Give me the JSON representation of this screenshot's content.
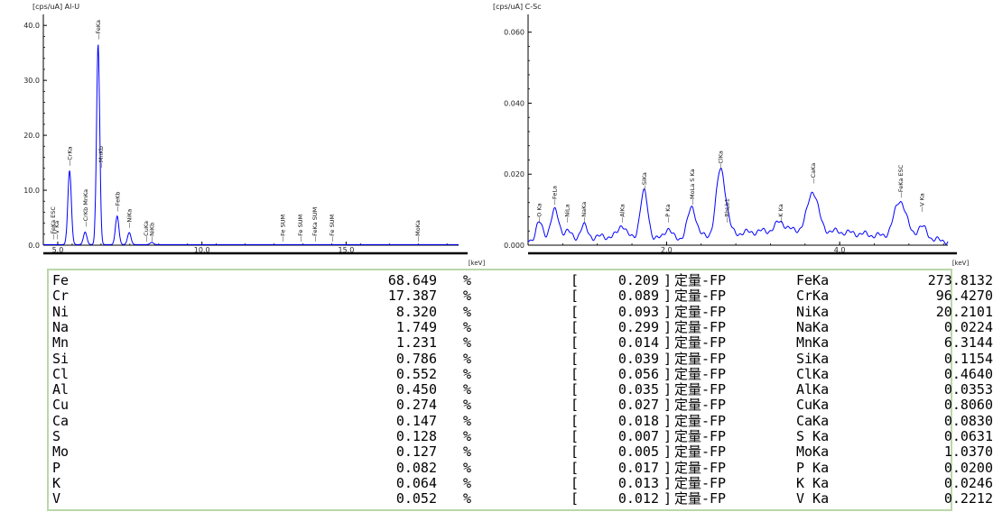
{
  "chart_data": [
    {
      "type": "line",
      "title": "[cps/uA] Al-U",
      "xlabel": "[keV]",
      "ylabel": "[cps/uA]",
      "xlim": [
        4.5,
        18.9
      ],
      "ylim": [
        0,
        42
      ],
      "x_ticks": [
        5.0,
        10.0,
        15.0
      ],
      "x_tick_labels": [
        "5.0",
        "10.0",
        "15.0"
      ],
      "y_ticks": [
        0,
        10,
        20,
        30,
        40
      ],
      "y_tick_labels": [
        "0.0",
        "10.0",
        "20.0",
        "30.0",
        "40.0"
      ],
      "grid": false,
      "line_color": "#0000ff",
      "peaks": [
        {
          "x": 5.41,
          "y": 13.5,
          "w": 0.06
        },
        {
          "x": 5.95,
          "y": 2.3,
          "w": 0.06
        },
        {
          "x": 6.4,
          "y": 36.5,
          "w": 0.055
        },
        {
          "x": 7.06,
          "y": 5.2,
          "w": 0.06
        },
        {
          "x": 7.48,
          "y": 2.2,
          "w": 0.06
        },
        {
          "x": 8.26,
          "y": 0.4,
          "w": 0.06
        }
      ],
      "baseline": 0.1,
      "annotations": [
        {
          "x": 4.83,
          "label": "FeKa ESC",
          "y": 1.0
        },
        {
          "x": 4.95,
          "label": "V Ka",
          "y": 1.0
        },
        {
          "x": 5.41,
          "label": "CrKa",
          "y": 14.4
        },
        {
          "x": 5.95,
          "label": "CrKb MnKa",
          "y": 3.3
        },
        {
          "x": 6.4,
          "label": "FeKa",
          "y": 37.4
        },
        {
          "x": 6.49,
          "label": "MnKb",
          "y": 14.0
        },
        {
          "x": 7.06,
          "label": "FeKb",
          "y": 6.1
        },
        {
          "x": 7.48,
          "label": "NiKa",
          "y": 3.1
        },
        {
          "x": 8.05,
          "label": "CuKa",
          "y": 0.6
        },
        {
          "x": 8.26,
          "label": "NiKb",
          "y": 0.6
        },
        {
          "x": 12.8,
          "label": "Fe SUM",
          "y": 0.6
        },
        {
          "x": 13.4,
          "label": "Fe SUM",
          "y": 0.6
        },
        {
          "x": 13.9,
          "label": "FeKa SUM",
          "y": 0.6
        },
        {
          "x": 14.5,
          "label": "Fe SUM",
          "y": 0.6
        },
        {
          "x": 17.48,
          "label": "MoKa",
          "y": 0.6
        }
      ]
    },
    {
      "type": "line",
      "title": "[cps/uA] C-Sc",
      "xlabel": "[keV]",
      "ylabel": "[cps/uA]",
      "xlim": [
        0.4,
        5.25
      ],
      "ylim": [
        0,
        0.065
      ],
      "x_ticks": [
        2.0,
        4.0
      ],
      "x_tick_labels": [
        "2.0",
        "4.0"
      ],
      "y_ticks": [
        0,
        0.02,
        0.04,
        0.06
      ],
      "y_tick_labels": [
        "0.000",
        "0.020",
        "0.040",
        "0.060"
      ],
      "grid": false,
      "line_color": "#0000ff",
      "peaks": [
        {
          "x": 0.525,
          "y": 0.0055,
          "w": 0.04
        },
        {
          "x": 0.705,
          "y": 0.0085,
          "w": 0.05
        },
        {
          "x": 0.851,
          "y": 0.0025,
          "w": 0.04
        },
        {
          "x": 1.041,
          "y": 0.0035,
          "w": 0.04
        },
        {
          "x": 1.486,
          "y": 0.0035,
          "w": 0.04
        },
        {
          "x": 1.74,
          "y": 0.013,
          "w": 0.045
        },
        {
          "x": 2.013,
          "y": 0.003,
          "w": 0.04
        },
        {
          "x": 2.293,
          "y": 0.0085,
          "w": 0.05
        },
        {
          "x": 2.622,
          "y": 0.018,
          "w": 0.05
        },
        {
          "x": 2.696,
          "y": 0.003,
          "w": 0.04
        },
        {
          "x": 3.314,
          "y": 0.0025,
          "w": 0.05
        },
        {
          "x": 3.69,
          "y": 0.011,
          "w": 0.06
        },
        {
          "x": 4.7,
          "y": 0.0105,
          "w": 0.07
        },
        {
          "x": 4.95,
          "y": 0.0035,
          "w": 0.06
        }
      ],
      "baseline": 0.0008,
      "annotations": [
        {
          "x": 0.525,
          "label": "O Ka",
          "y": 0.0063
        },
        {
          "x": 0.705,
          "label": "FeLa",
          "y": 0.0113
        },
        {
          "x": 0.851,
          "label": "NiLa",
          "y": 0.0063
        },
        {
          "x": 1.041,
          "label": "NaKa",
          "y": 0.0063
        },
        {
          "x": 1.486,
          "label": "AlKa",
          "y": 0.0063
        },
        {
          "x": 1.74,
          "label": "SiKa",
          "y": 0.0153
        },
        {
          "x": 2.013,
          "label": "P Ka",
          "y": 0.0063
        },
        {
          "x": 2.293,
          "label": "MoLa S Ka",
          "y": 0.0113
        },
        {
          "x": 2.622,
          "label": "ClKa",
          "y": 0.0213
        },
        {
          "x": 2.696,
          "label": "RhLb1",
          "y": 0.0063
        },
        {
          "x": 3.314,
          "label": "K Ka",
          "y": 0.0063
        },
        {
          "x": 3.69,
          "label": "CaKa",
          "y": 0.0173
        },
        {
          "x": 4.7,
          "label": "FeKa ESC",
          "y": 0.0133
        },
        {
          "x": 4.95,
          "label": "V Ka",
          "y": 0.0093
        }
      ]
    }
  ],
  "results": [
    {
      "element": "Fe",
      "value": "68.649",
      "unit": "%",
      "error": "0.209",
      "method": "定量-FP",
      "line": "FeKa",
      "intensity": "273.8132"
    },
    {
      "element": "Cr",
      "value": "17.387",
      "unit": "%",
      "error": "0.089",
      "method": "定量-FP",
      "line": "CrKa",
      "intensity": "96.4270"
    },
    {
      "element": "Ni",
      "value": "8.320",
      "unit": "%",
      "error": "0.093",
      "method": "定量-FP",
      "line": "NiKa",
      "intensity": "20.2101"
    },
    {
      "element": "Na",
      "value": "1.749",
      "unit": "%",
      "error": "0.299",
      "method": "定量-FP",
      "line": "NaKa",
      "intensity": "0.0224"
    },
    {
      "element": "Mn",
      "value": "1.231",
      "unit": "%",
      "error": "0.014",
      "method": "定量-FP",
      "line": "MnKa",
      "intensity": "6.3144"
    },
    {
      "element": "Si",
      "value": "0.786",
      "unit": "%",
      "error": "0.039",
      "method": "定量-FP",
      "line": "SiKa",
      "intensity": "0.1154"
    },
    {
      "element": "Cl",
      "value": "0.552",
      "unit": "%",
      "error": "0.056",
      "method": "定量-FP",
      "line": "ClKa",
      "intensity": "0.4640"
    },
    {
      "element": "Al",
      "value": "0.450",
      "unit": "%",
      "error": "0.035",
      "method": "定量-FP",
      "line": "AlKa",
      "intensity": "0.0353"
    },
    {
      "element": "Cu",
      "value": "0.274",
      "unit": "%",
      "error": "0.027",
      "method": "定量-FP",
      "line": "CuKa",
      "intensity": "0.8060"
    },
    {
      "element": "Ca",
      "value": "0.147",
      "unit": "%",
      "error": "0.018",
      "method": "定量-FP",
      "line": "CaKa",
      "intensity": "0.0830"
    },
    {
      "element": "S",
      "value": "0.128",
      "unit": "%",
      "error": "0.007",
      "method": "定量-FP",
      "line": "S Ka",
      "intensity": "0.0631"
    },
    {
      "element": "Mo",
      "value": "0.127",
      "unit": "%",
      "error": "0.005",
      "method": "定量-FP",
      "line": "MoKa",
      "intensity": "1.0370"
    },
    {
      "element": "P",
      "value": "0.082",
      "unit": "%",
      "error": "0.017",
      "method": "定量-FP",
      "line": "P Ka",
      "intensity": "0.0200"
    },
    {
      "element": "K",
      "value": "0.064",
      "unit": "%",
      "error": "0.013",
      "method": "定量-FP",
      "line": "K Ka",
      "intensity": "0.0246"
    },
    {
      "element": "V",
      "value": "0.052",
      "unit": "%",
      "error": "0.012",
      "method": "定量-FP",
      "line": "V Ka",
      "intensity": "0.2212"
    }
  ]
}
